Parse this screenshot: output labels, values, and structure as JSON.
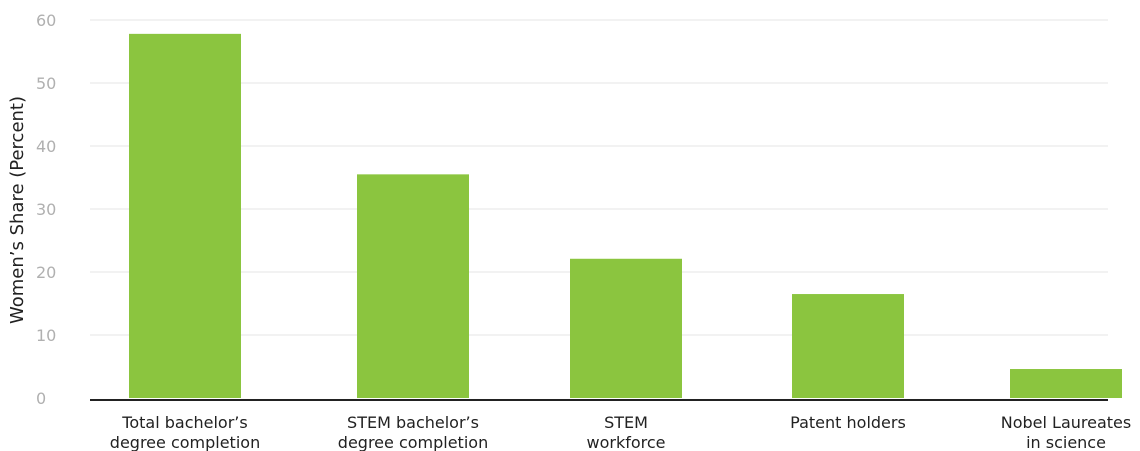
{
  "chart_data": {
    "type": "bar",
    "ylabel": "Women’s Share (Percent)",
    "xlabel": "",
    "ylim": [
      0,
      60
    ],
    "yticks": [
      0,
      10,
      20,
      30,
      40,
      50,
      60
    ],
    "grid": true,
    "bar_color": "#8bc53f",
    "categories": [
      [
        "Total bachelor’s",
        "degree completion"
      ],
      [
        "STEM bachelor’s",
        "degree completion"
      ],
      [
        "STEM",
        "workforce"
      ],
      [
        "Patent holders"
      ],
      [
        "Nobel Laureates",
        "in science"
      ]
    ],
    "values": [
      57.8,
      35.5,
      22.1,
      16.5,
      4.6
    ]
  }
}
